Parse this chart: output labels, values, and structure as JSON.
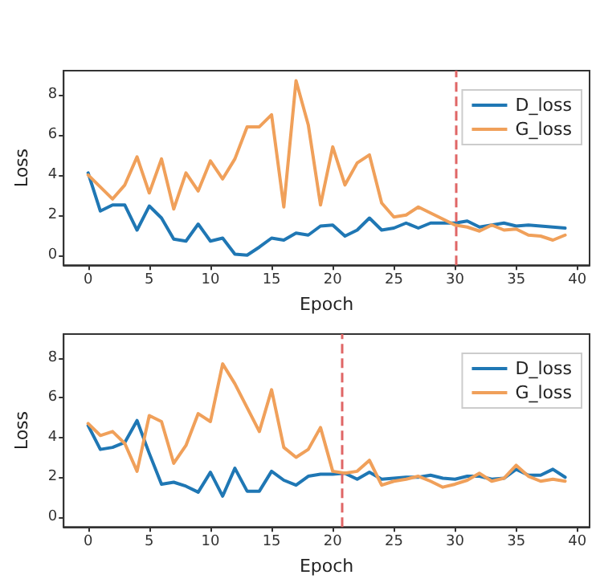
{
  "chart_data": [
    {
      "type": "line",
      "xlabel": "Epoch",
      "ylabel": "Loss",
      "xlim": [
        -2,
        41
      ],
      "ylim": [
        -0.5,
        9.2
      ],
      "xticks": [
        0,
        5,
        10,
        15,
        20,
        25,
        30,
        35,
        40
      ],
      "yticks": [
        0,
        2,
        4,
        6,
        8
      ],
      "grid": false,
      "legend": "top right",
      "marker": "none",
      "line_style": "solid",
      "x": [
        0,
        1,
        2,
        3,
        4,
        5,
        6,
        7,
        8,
        9,
        10,
        11,
        12,
        13,
        14,
        15,
        16,
        17,
        18,
        19,
        20,
        21,
        22,
        23,
        24,
        25,
        26,
        27,
        28,
        29,
        30,
        31,
        32,
        33,
        34,
        35,
        36,
        37,
        38,
        39
      ],
      "series": [
        {
          "name": "D_loss",
          "color": "#1f77b4",
          "values": [
            4.1,
            2.2,
            2.5,
            2.5,
            1.25,
            2.45,
            1.85,
            0.8,
            0.7,
            1.55,
            0.7,
            0.85,
            0.05,
            0.0,
            0.4,
            0.85,
            0.75,
            1.1,
            1.0,
            1.45,
            1.5,
            0.95,
            1.25,
            1.85,
            1.25,
            1.35,
            1.6,
            1.35,
            1.6,
            1.6,
            1.6,
            1.7,
            1.4,
            1.5,
            1.6,
            1.45,
            1.5,
            1.45,
            1.4,
            1.35
          ]
        },
        {
          "name": "G_loss",
          "color": "#f0a05a",
          "values": [
            4.0,
            3.4,
            2.8,
            3.5,
            4.9,
            3.1,
            4.8,
            2.3,
            4.1,
            3.2,
            4.7,
            3.8,
            4.8,
            6.4,
            6.4,
            7.0,
            2.4,
            8.7,
            6.5,
            2.5,
            5.4,
            3.5,
            4.6,
            5.0,
            2.6,
            1.9,
            2.0,
            2.4,
            2.1,
            1.8,
            1.5,
            1.4,
            1.2,
            1.5,
            1.25,
            1.3,
            1.0,
            0.95,
            0.75,
            1.0
          ]
        }
      ],
      "ref_lines": [
        {
          "axis": "x",
          "value": 30,
          "color": "#e06666",
          "line_style": "dashed"
        }
      ]
    },
    {
      "type": "line",
      "xlabel": "Epoch",
      "ylabel": "Loss",
      "xlim": [
        -2,
        41
      ],
      "ylim": [
        -0.5,
        9.2
      ],
      "xticks": [
        0,
        5,
        10,
        15,
        20,
        25,
        30,
        35,
        40
      ],
      "yticks": [
        0,
        2,
        4,
        6,
        8
      ],
      "grid": false,
      "legend": "top right",
      "marker": "none",
      "line_style": "solid",
      "x": [
        0,
        1,
        2,
        3,
        4,
        5,
        6,
        7,
        8,
        9,
        10,
        11,
        12,
        13,
        14,
        15,
        16,
        17,
        18,
        19,
        20,
        21,
        22,
        23,
        24,
        25,
        26,
        27,
        28,
        29,
        30,
        31,
        32,
        33,
        34,
        35,
        36,
        37,
        38,
        39
      ],
      "series": [
        {
          "name": "D_loss",
          "color": "#1f77b4",
          "values": [
            4.6,
            3.4,
            3.5,
            3.75,
            4.85,
            3.2,
            1.65,
            1.75,
            1.55,
            1.25,
            2.25,
            1.05,
            2.45,
            1.3,
            1.3,
            2.3,
            1.85,
            1.6,
            2.05,
            2.15,
            2.15,
            2.2,
            1.9,
            2.25,
            1.9,
            1.95,
            2.0,
            2.0,
            2.1,
            1.95,
            1.9,
            2.05,
            2.05,
            1.9,
            1.95,
            2.4,
            2.1,
            2.1,
            2.4,
            2.0
          ]
        },
        {
          "name": "G_loss",
          "color": "#f0a05a",
          "values": [
            4.7,
            4.1,
            4.3,
            3.7,
            2.3,
            5.1,
            4.8,
            2.7,
            3.6,
            5.2,
            4.8,
            7.7,
            6.7,
            5.5,
            4.3,
            6.4,
            3.5,
            3.0,
            3.4,
            4.5,
            2.3,
            2.2,
            2.3,
            2.85,
            1.6,
            1.8,
            1.9,
            2.05,
            1.8,
            1.5,
            1.65,
            1.85,
            2.2,
            1.8,
            1.95,
            2.6,
            2.05,
            1.8,
            1.9,
            1.8
          ]
        }
      ],
      "ref_lines": [
        {
          "axis": "x",
          "value": 20.8,
          "color": "#e06666",
          "line_style": "dashed"
        }
      ]
    }
  ]
}
